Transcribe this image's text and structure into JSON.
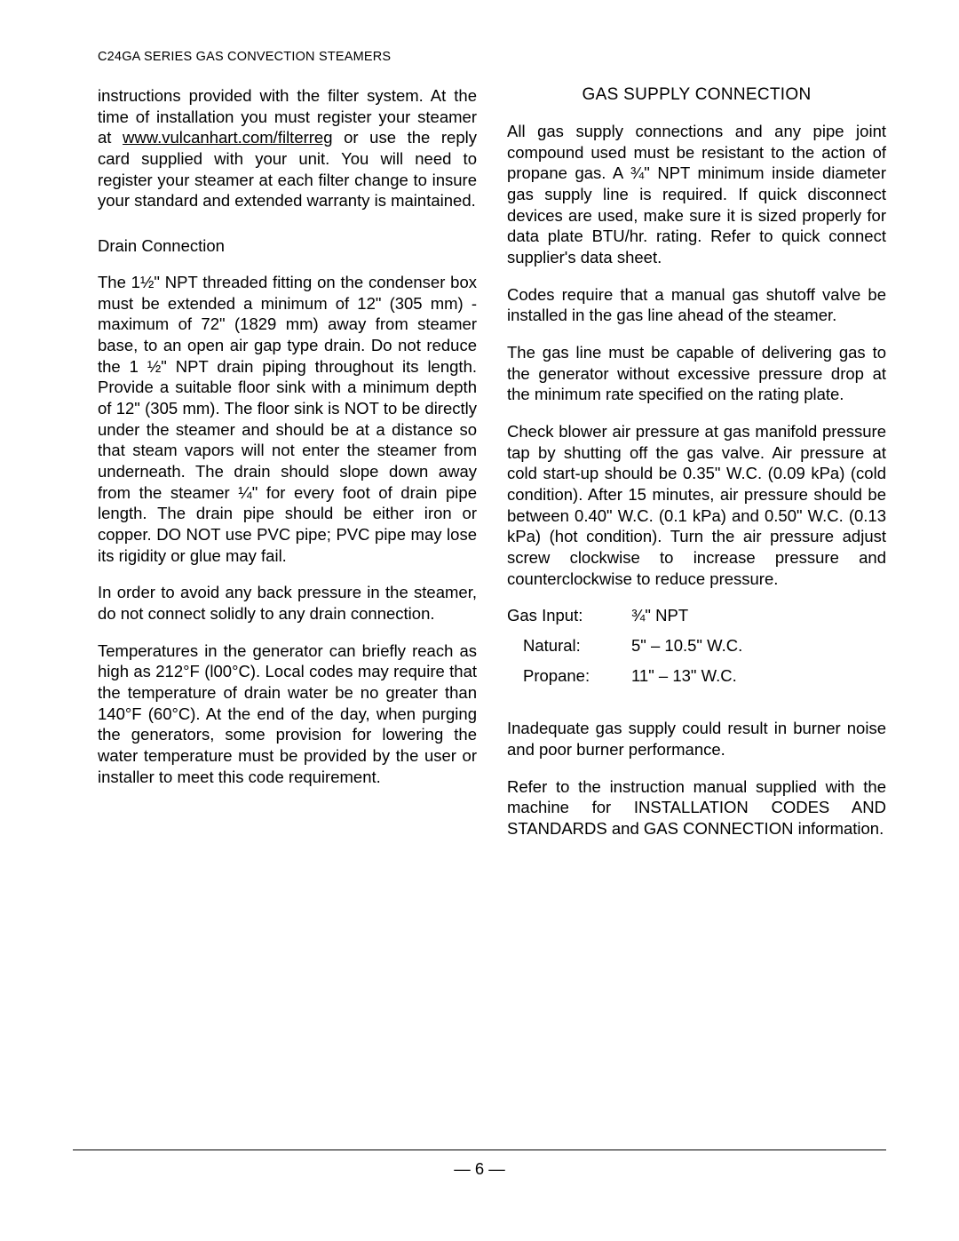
{
  "header": "C24GA SERIES GAS CONVECTION STEAMERS",
  "page_number": "— 6 —",
  "left": {
    "p1_a": "instructions provided with the filter system. At the time of installation you must register your steamer at ",
    "p1_link": "www.vulcanhart.com/filterreg",
    "p1_b": "  or use the reply card supplied with your unit. You will need to register your steamer at each filter change to insure your standard and extended warranty is maintained.",
    "sub1": "Drain Connection",
    "p2": "The 1½\" NPT threaded fitting on the condenser box must be extended a minimum of 12\" (305 mm) - maximum of 72\" (1829 mm) away from steamer base, to an open air gap type drain. Do not reduce the 1 ½\" NPT drain piping throughout its length. Provide a suitable floor sink with a minimum depth of 12\" (305 mm). The floor sink is NOT to be directly under the steamer and should be at a distance so that steam vapors will not enter the steamer from underneath. The drain should slope down away from the steamer ¼\" for every foot of drain pipe length. The drain pipe should be either iron or copper. DO NOT use PVC pipe; PVC pipe may lose its rigidity or glue may fail.",
    "p3": "In order to avoid any back pressure in the steamer, do not connect solidly to any drain connection.",
    "p4": "Temperatures in the generator can briefly reach as high as 212°F (l00°C). Local codes may require that the temperature of drain water be no greater than 140°F (60°C). At the end of the day, when purging the generators, some provision for lowering the water temperature must be provided by the user or installer to meet this code requirement."
  },
  "right": {
    "title": "GAS SUPPLY CONNECTION",
    "p1": "All gas supply connections and any pipe joint compound used must be resistant to the action of propane gas. A ¾\" NPT minimum inside diameter gas supply line is required. If quick disconnect devices are used, make sure it is sized properly for data plate BTU/hr. rating. Refer to quick connect supplier's data sheet.",
    "p2": "Codes require that a manual gas shutoff valve be installed in the gas line ahead of the steamer.",
    "p3": "The gas line must be capable of delivering gas to the generator without excessive pressure drop at the minimum rate specified on the rating plate.",
    "p4": "Check blower air pressure at gas manifold pressure tap by shutting off the gas valve. Air pressure at cold start-up should be 0.35\" W.C. (0.09 kPa) (cold condition). After 15 minutes, air pressure should be between 0.40\" W.C. (0.1 kPa) and 0.50\" W.C. (0.13 kPa) (hot condition). Turn the air pressure adjust screw clockwise to increase pressure and counterclockwise to reduce pressure.",
    "gas": {
      "r1_label": "Gas Input:",
      "r1_val": "¾\" NPT",
      "r2_label": "Natural:",
      "r2_val": "5\" – 10.5\" W.C.",
      "r3_label": "Propane:",
      "r3_val": "11\" – 13\" W.C."
    },
    "p5": "Inadequate gas supply could result in burner noise and poor burner performance.",
    "p6": "Refer to the instruction manual supplied with the machine for INSTALLATION CODES AND STANDARDS and GAS CONNECTION information."
  }
}
